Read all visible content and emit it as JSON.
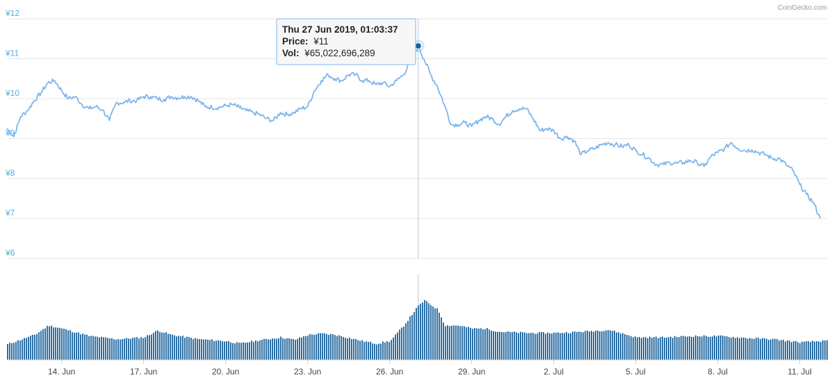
{
  "credit": "CoinGecko.com",
  "colors": {
    "price_line": "#7cb5ec",
    "volume_bar": "#2b6ea3",
    "axis_text": "#5aa9dc",
    "grid": "#e6e6e6",
    "crosshair": "#bcc8d4",
    "marker": "#1f5f99"
  },
  "tooltip": {
    "date": "Thu 27 Jun 2019, 01:03:37",
    "price_label": "Price:",
    "price_value": "¥11",
    "vol_label": "Vol:",
    "vol_value": "¥65,022,696,289"
  },
  "chart_data": {
    "type": "line",
    "grid": true,
    "legend": "none",
    "y_axis": {
      "ticks": [
        {
          "label": "¥12",
          "value": 12
        },
        {
          "label": "¥11",
          "value": 11
        },
        {
          "label": "¥10",
          "value": 10
        },
        {
          "label": "¥9",
          "value": 9
        },
        {
          "label": "¥8",
          "value": 8
        },
        {
          "label": "¥7",
          "value": 7
        },
        {
          "label": "¥6",
          "value": 6
        }
      ],
      "ylim": [
        6,
        12
      ]
    },
    "x_axis": {
      "start": "2019-06-12",
      "end": "2019-07-12",
      "ticks": [
        {
          "label": "14. Jun",
          "date": "2019-06-14"
        },
        {
          "label": "17. Jun",
          "date": "2019-06-17"
        },
        {
          "label": "20. Jun",
          "date": "2019-06-20"
        },
        {
          "label": "23. Jun",
          "date": "2019-06-23"
        },
        {
          "label": "26. Jun",
          "date": "2019-06-26"
        },
        {
          "label": "29. Jun",
          "date": "2019-06-29"
        },
        {
          "label": "2. Jul",
          "date": "2019-07-02"
        },
        {
          "label": "5. Jul",
          "date": "2019-07-05"
        },
        {
          "label": "8. Jul",
          "date": "2019-07-08"
        },
        {
          "label": "11. Jul",
          "date": "2019-07-11"
        }
      ]
    },
    "highlight": {
      "date": "2019-06-27T01:03:37",
      "price": 11.32
    },
    "price_series": [
      [
        "2019-06-12T00:00",
        9.25
      ],
      [
        "2019-06-12T06:00",
        9.05
      ],
      [
        "2019-06-12T12:00",
        9.55
      ],
      [
        "2019-06-12T18:00",
        9.7
      ],
      [
        "2019-06-13T00:00",
        9.95
      ],
      [
        "2019-06-13T06:00",
        10.15
      ],
      [
        "2019-06-13T12:00",
        10.4
      ],
      [
        "2019-06-13T18:00",
        10.45
      ],
      [
        "2019-06-14T00:00",
        10.2
      ],
      [
        "2019-06-14T06:00",
        10.0
      ],
      [
        "2019-06-14T12:00",
        10.05
      ],
      [
        "2019-06-14T18:00",
        9.85
      ],
      [
        "2019-06-15T00:00",
        9.75
      ],
      [
        "2019-06-15T06:00",
        9.8
      ],
      [
        "2019-06-15T12:00",
        9.72
      ],
      [
        "2019-06-15T18:00",
        9.45
      ],
      [
        "2019-06-16T00:00",
        9.9
      ],
      [
        "2019-06-16T06:00",
        9.9
      ],
      [
        "2019-06-16T12:00",
        9.95
      ],
      [
        "2019-06-16T18:00",
        9.95
      ],
      [
        "2019-06-17T00:00",
        10.05
      ],
      [
        "2019-06-17T06:00",
        10.05
      ],
      [
        "2019-06-17T12:00",
        10.0
      ],
      [
        "2019-06-17T18:00",
        9.98
      ],
      [
        "2019-06-18T00:00",
        10.05
      ],
      [
        "2019-06-18T06:00",
        10.02
      ],
      [
        "2019-06-18T12:00",
        10.05
      ],
      [
        "2019-06-18T18:00",
        10.05
      ],
      [
        "2019-06-19T00:00",
        9.95
      ],
      [
        "2019-06-19T06:00",
        9.8
      ],
      [
        "2019-06-19T12:00",
        9.78
      ],
      [
        "2019-06-19T18:00",
        9.78
      ],
      [
        "2019-06-20T00:00",
        9.82
      ],
      [
        "2019-06-20T06:00",
        9.85
      ],
      [
        "2019-06-20T12:00",
        9.78
      ],
      [
        "2019-06-20T18:00",
        9.7
      ],
      [
        "2019-06-21T00:00",
        9.65
      ],
      [
        "2019-06-21T06:00",
        9.6
      ],
      [
        "2019-06-21T12:00",
        9.5
      ],
      [
        "2019-06-21T18:00",
        9.45
      ],
      [
        "2019-06-22T00:00",
        9.65
      ],
      [
        "2019-06-22T06:00",
        9.6
      ],
      [
        "2019-06-22T12:00",
        9.65
      ],
      [
        "2019-06-22T18:00",
        9.75
      ],
      [
        "2019-06-23T00:00",
        9.8
      ],
      [
        "2019-06-23T06:00",
        10.2
      ],
      [
        "2019-06-23T12:00",
        10.45
      ],
      [
        "2019-06-23T18:00",
        10.6
      ],
      [
        "2019-06-24T00:00",
        10.5
      ],
      [
        "2019-06-24T06:00",
        10.45
      ],
      [
        "2019-06-24T12:00",
        10.6
      ],
      [
        "2019-06-24T18:00",
        10.6
      ],
      [
        "2019-06-25T00:00",
        10.45
      ],
      [
        "2019-06-25T06:00",
        10.45
      ],
      [
        "2019-06-25T12:00",
        10.35
      ],
      [
        "2019-06-25T18:00",
        10.4
      ],
      [
        "2019-06-26T00:00",
        10.3
      ],
      [
        "2019-06-26T06:00",
        10.45
      ],
      [
        "2019-06-26T12:00",
        10.6
      ],
      [
        "2019-06-26T18:00",
        10.9
      ],
      [
        "2019-06-27T01:03",
        11.32
      ],
      [
        "2019-06-27T06:00",
        11.0
      ],
      [
        "2019-06-27T12:00",
        10.6
      ],
      [
        "2019-06-27T18:00",
        10.3
      ],
      [
        "2019-06-28T00:00",
        9.85
      ],
      [
        "2019-06-28T06:00",
        9.35
      ],
      [
        "2019-06-28T12:00",
        9.35
      ],
      [
        "2019-06-28T18:00",
        9.4
      ],
      [
        "2019-06-29T00:00",
        9.3
      ],
      [
        "2019-06-29T06:00",
        9.45
      ],
      [
        "2019-06-29T12:00",
        9.55
      ],
      [
        "2019-06-29T18:00",
        9.5
      ],
      [
        "2019-06-30T00:00",
        9.35
      ],
      [
        "2019-06-30T06:00",
        9.55
      ],
      [
        "2019-06-30T12:00",
        9.7
      ],
      [
        "2019-06-30T18:00",
        9.75
      ],
      [
        "2019-07-01T00:00",
        9.75
      ],
      [
        "2019-07-01T06:00",
        9.5
      ],
      [
        "2019-07-01T12:00",
        9.2
      ],
      [
        "2019-07-01T18:00",
        9.25
      ],
      [
        "2019-07-02T00:00",
        9.2
      ],
      [
        "2019-07-02T06:00",
        9.0
      ],
      [
        "2019-07-02T12:00",
        9.05
      ],
      [
        "2019-07-02T18:00",
        8.95
      ],
      [
        "2019-07-03T00:00",
        8.6
      ],
      [
        "2019-07-03T06:00",
        8.7
      ],
      [
        "2019-07-03T12:00",
        8.75
      ],
      [
        "2019-07-03T18:00",
        8.85
      ],
      [
        "2019-07-04T00:00",
        8.9
      ],
      [
        "2019-07-04T06:00",
        8.85
      ],
      [
        "2019-07-04T12:00",
        8.8
      ],
      [
        "2019-07-04T18:00",
        8.85
      ],
      [
        "2019-07-05T00:00",
        8.7
      ],
      [
        "2019-07-05T06:00",
        8.6
      ],
      [
        "2019-07-05T12:00",
        8.5
      ],
      [
        "2019-07-05T18:00",
        8.35
      ],
      [
        "2019-07-06T00:00",
        8.35
      ],
      [
        "2019-07-06T06:00",
        8.4
      ],
      [
        "2019-07-06T12:00",
        8.38
      ],
      [
        "2019-07-06T18:00",
        8.4
      ],
      [
        "2019-07-07T00:00",
        8.45
      ],
      [
        "2019-07-07T06:00",
        8.4
      ],
      [
        "2019-07-07T12:00",
        8.3
      ],
      [
        "2019-07-07T18:00",
        8.55
      ],
      [
        "2019-07-08T00:00",
        8.65
      ],
      [
        "2019-07-08T06:00",
        8.75
      ],
      [
        "2019-07-08T12:00",
        8.9
      ],
      [
        "2019-07-08T18:00",
        8.75
      ],
      [
        "2019-07-09T00:00",
        8.7
      ],
      [
        "2019-07-09T06:00",
        8.72
      ],
      [
        "2019-07-09T12:00",
        8.65
      ],
      [
        "2019-07-09T18:00",
        8.6
      ],
      [
        "2019-07-10T00:00",
        8.5
      ],
      [
        "2019-07-10T06:00",
        8.5
      ],
      [
        "2019-07-10T12:00",
        8.35
      ],
      [
        "2019-07-10T18:00",
        8.2
      ],
      [
        "2019-07-11T00:00",
        7.85
      ],
      [
        "2019-07-11T06:00",
        7.6
      ],
      [
        "2019-07-11T12:00",
        7.4
      ],
      [
        "2019-07-11T18:00",
        7.0
      ]
    ],
    "volume_series": {
      "unit": "relative to peak",
      "points": [
        [
          "2019-06-12",
          0.25
        ],
        [
          "2019-06-13",
          0.4
        ],
        [
          "2019-06-13T12:00",
          0.55
        ],
        [
          "2019-06-14",
          0.5
        ],
        [
          "2019-06-15",
          0.38
        ],
        [
          "2019-06-16",
          0.33
        ],
        [
          "2019-06-17",
          0.36
        ],
        [
          "2019-06-17T12:00",
          0.47
        ],
        [
          "2019-06-18",
          0.4
        ],
        [
          "2019-06-19",
          0.33
        ],
        [
          "2019-06-20",
          0.3
        ],
        [
          "2019-06-20T12:00",
          0.26
        ],
        [
          "2019-06-21",
          0.3
        ],
        [
          "2019-06-22",
          0.36
        ],
        [
          "2019-06-22T12:00",
          0.32
        ],
        [
          "2019-06-23",
          0.4
        ],
        [
          "2019-06-23T12:00",
          0.42
        ],
        [
          "2019-06-24",
          0.4
        ],
        [
          "2019-06-25",
          0.3
        ],
        [
          "2019-06-25T12:00",
          0.26
        ],
        [
          "2019-06-26",
          0.3
        ],
        [
          "2019-06-26T12:00",
          0.55
        ],
        [
          "2019-06-27",
          0.85
        ],
        [
          "2019-06-27T06:00",
          0.95
        ],
        [
          "2019-06-27T18:00",
          0.8
        ],
        [
          "2019-06-28",
          0.55
        ],
        [
          "2019-06-28T12:00",
          0.55
        ],
        [
          "2019-06-29",
          0.5
        ],
        [
          "2019-06-29T12:00",
          0.5
        ],
        [
          "2019-06-30",
          0.45
        ],
        [
          "2019-07-01",
          0.43
        ],
        [
          "2019-07-02",
          0.43
        ],
        [
          "2019-07-03",
          0.45
        ],
        [
          "2019-07-04",
          0.48
        ],
        [
          "2019-07-05",
          0.36
        ],
        [
          "2019-07-06",
          0.36
        ],
        [
          "2019-07-07",
          0.38
        ],
        [
          "2019-07-08",
          0.38
        ],
        [
          "2019-07-09",
          0.35
        ],
        [
          "2019-07-10",
          0.33
        ],
        [
          "2019-07-11",
          0.28
        ],
        [
          "2019-07-11T18:00",
          0.3
        ]
      ]
    }
  }
}
